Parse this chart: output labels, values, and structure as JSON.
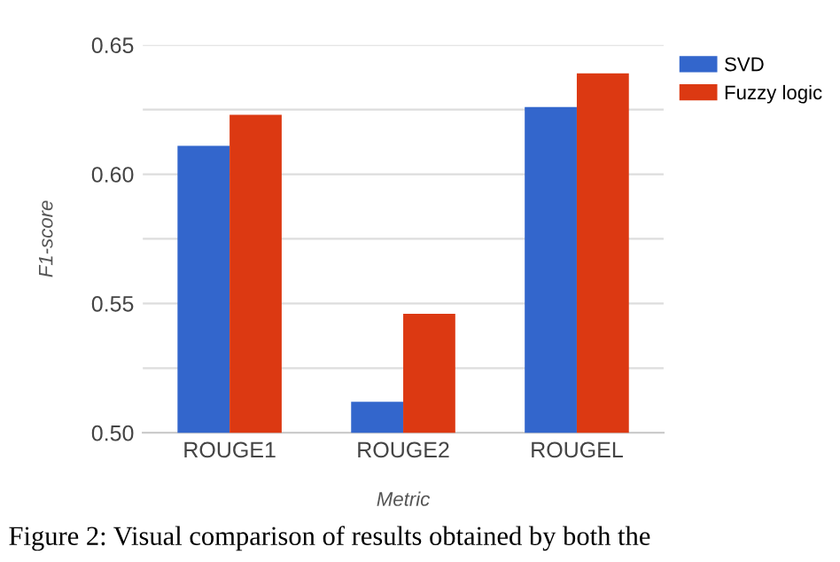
{
  "chart_data": {
    "type": "bar",
    "xlabel": "Metric",
    "ylabel": "F1-score",
    "categories": [
      "ROUGE1",
      "ROUGE2",
      "ROUGEL"
    ],
    "series": [
      {
        "name": "SVD",
        "color": "#3366cc",
        "values": [
          0.611,
          0.512,
          0.626
        ]
      },
      {
        "name": "Fuzzy logic",
        "color": "#dc3912",
        "values": [
          0.623,
          0.546,
          0.639
        ]
      }
    ],
    "ylim": [
      0.5,
      0.65
    ],
    "yticks": [
      {
        "value": 0.5,
        "label": "0.50"
      },
      {
        "value": 0.525,
        "label": null
      },
      {
        "value": 0.55,
        "label": "0.55"
      },
      {
        "value": 0.575,
        "label": null
      },
      {
        "value": 0.6,
        "label": "0.60"
      },
      {
        "value": 0.625,
        "label": null
      },
      {
        "value": 0.65,
        "label": "0.65"
      }
    ],
    "grid": "y",
    "legend": "top right",
    "annotations": [
      "Figure 2: Visual comparison of results obtained by both the"
    ]
  }
}
